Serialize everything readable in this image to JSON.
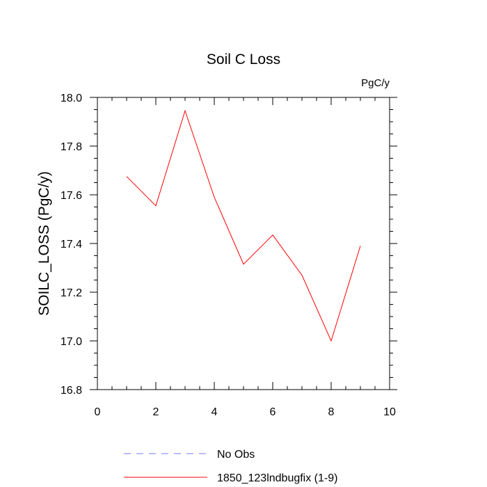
{
  "chart_data": {
    "type": "line",
    "title": "Soil C Loss",
    "units_label": "PgC/y",
    "ylabel": "SOILC_LOSS  (PgC/y)",
    "xlabel": "",
    "xlim": [
      0,
      10
    ],
    "ylim": [
      16.8,
      18.0
    ],
    "x_ticks": [
      0,
      2,
      4,
      6,
      8,
      10
    ],
    "y_ticks": [
      16.8,
      17.0,
      17.2,
      17.4,
      17.6,
      17.8,
      18.0
    ],
    "x_tick_labels": [
      "0",
      "2",
      "4",
      "6",
      "8",
      "10"
    ],
    "y_tick_labels": [
      "16.8",
      "17.0",
      "17.2",
      "17.4",
      "17.6",
      "17.8",
      "18.0"
    ],
    "grid": false,
    "legend_position": "bottom",
    "series": [
      {
        "name": "1850_123lndbugfix (1-9)",
        "color": "#ff0000",
        "x": [
          1,
          2,
          3,
          4,
          5,
          6,
          7,
          8,
          9
        ],
        "values": [
          17.675,
          17.555,
          17.945,
          17.59,
          17.315,
          17.435,
          17.27,
          17.0,
          17.39
        ]
      }
    ],
    "legend": [
      {
        "label": "No Obs",
        "color": "#7777ff",
        "style": "dashed"
      },
      {
        "label": "1850_123lndbugfix (1-9)",
        "color": "#ff0000",
        "style": "solid"
      }
    ]
  }
}
